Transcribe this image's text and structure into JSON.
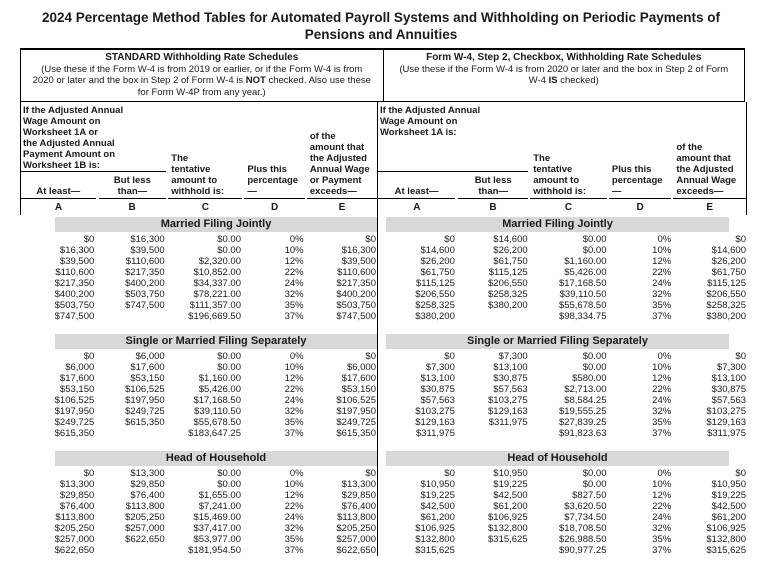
{
  "title": "2024 Percentage Method Tables for Automated Payroll Systems and Withholding on Periodic Payments of Pensions and Annuities",
  "theme": {
    "band_bg": "#d8d8d8",
    "border_color": "#000000",
    "text_color": "#1a1a1a"
  },
  "schedules": [
    {
      "heading": "STANDARD Withholding Rate Schedules",
      "desc_1": "(Use these if the Form W-4 is from 2019 or earlier, or if the Form W-4 is from 2020 or later and the box in Step 2 of Form W-4 is ",
      "desc_bold": "NOT",
      "desc_2": " checked. Also use these for Form W-4P from any year.)",
      "intro": "If the Adjusted Annual\nWage Amount on\nWorksheet 1A or\nthe Adjusted Annual\nPayment Amount on\nWorksheet 1B is:",
      "col_headers": {
        "a": "At least—",
        "b": "But less\nthan—",
        "c": "The\ntentative\namount to\nwithhold is:",
        "d": "Plus this\npercentage—",
        "e": "of the\namount that\nthe Adjusted\nAnnual Wage\nor Payment\nexceeds—"
      },
      "col_letters": [
        "A",
        "B",
        "C",
        "D",
        "E"
      ],
      "sections": [
        {
          "name": "Married Filing Jointly",
          "rows": [
            [
              "$0",
              "$16,300",
              "$0.00",
              "0%",
              "$0"
            ],
            [
              "$16,300",
              "$39,500",
              "$0.00",
              "10%",
              "$16,300"
            ],
            [
              "$39,500",
              "$110,600",
              "$2,320.00",
              "12%",
              "$39,500"
            ],
            [
              "$110,600",
              "$217,350",
              "$10,852.00",
              "22%",
              "$110,600"
            ],
            [
              "$217,350",
              "$400,200",
              "$34,337.00",
              "24%",
              "$217,350"
            ],
            [
              "$400,200",
              "$503,750",
              "$78,221.00",
              "32%",
              "$400,200"
            ],
            [
              "$503,750",
              "$747,500",
              "$111,357.00",
              "35%",
              "$503,750"
            ],
            [
              "$747,500",
              "",
              "$196,669.50",
              "37%",
              "$747,500"
            ]
          ]
        },
        {
          "name": "Single or Married Filing Separately",
          "rows": [
            [
              "$0",
              "$6,000",
              "$0.00",
              "0%",
              "$0"
            ],
            [
              "$6,000",
              "$17,600",
              "$0.00",
              "10%",
              "$6,000"
            ],
            [
              "$17,600",
              "$53,150",
              "$1,160.00",
              "12%",
              "$17,600"
            ],
            [
              "$53,150",
              "$106,525",
              "$5,426.00",
              "22%",
              "$53,150"
            ],
            [
              "$106,525",
              "$197,950",
              "$17,168.50",
              "24%",
              "$106,525"
            ],
            [
              "$197,950",
              "$249,725",
              "$39,110.50",
              "32%",
              "$197,950"
            ],
            [
              "$249,725",
              "$615,350",
              "$55,678.50",
              "35%",
              "$249,725"
            ],
            [
              "$615,350",
              "",
              "$183,647.25",
              "37%",
              "$615,350"
            ]
          ]
        },
        {
          "name": "Head of Household",
          "rows": [
            [
              "$0",
              "$13,300",
              "$0.00",
              "0%",
              "$0"
            ],
            [
              "$13,300",
              "$29,850",
              "$0.00",
              "10%",
              "$13,300"
            ],
            [
              "$29,850",
              "$76,400",
              "$1,655.00",
              "12%",
              "$29,850"
            ],
            [
              "$76,400",
              "$113,800",
              "$7,241.00",
              "22%",
              "$76,400"
            ],
            [
              "$113,800",
              "$205,250",
              "$15,469.00",
              "24%",
              "$113,800"
            ],
            [
              "$205,250",
              "$257,000",
              "$37,417.00",
              "32%",
              "$205,250"
            ],
            [
              "$257,000",
              "$622,650",
              "$53,977.00",
              "35%",
              "$257,000"
            ],
            [
              "$622,650",
              "",
              "$181,954.50",
              "37%",
              "$622,650"
            ]
          ]
        }
      ]
    },
    {
      "heading": "Form W-4, Step 2, Checkbox, Withholding Rate Schedules",
      "desc_1": "(Use these if the Form W-4 is from 2020 or later and the box in Step 2 of Form W-4 ",
      "desc_bold": "IS",
      "desc_2": " checked)",
      "intro": "If the Adjusted Annual\nWage Amount on\nWorksheet 1A is:",
      "col_headers": {
        "a": "At least—",
        "b": "But less\nthan—",
        "c": "The\ntentative\namount to\nwithhold is:",
        "d": "Plus this\npercentage—",
        "e": "of the\namount that\nthe Adjusted\nAnnual Wage\nexceeds—"
      },
      "col_letters": [
        "A",
        "B",
        "C",
        "D",
        "E"
      ],
      "sections": [
        {
          "name": "Married Filing Jointly",
          "rows": [
            [
              "$0",
              "$14,600",
              "$0.00",
              "0%",
              "$0"
            ],
            [
              "$14,600",
              "$26,200",
              "$0.00",
              "10%",
              "$14,600"
            ],
            [
              "$26,200",
              "$61,750",
              "$1,160.00",
              "12%",
              "$26,200"
            ],
            [
              "$61,750",
              "$115,125",
              "$5,426.00",
              "22%",
              "$61,750"
            ],
            [
              "$115,125",
              "$206,550",
              "$17,168.50",
              "24%",
              "$115,125"
            ],
            [
              "$206,550",
              "$258,325",
              "$39,110.50",
              "32%",
              "$206,550"
            ],
            [
              "$258,325",
              "$380,200",
              "$55,678.50",
              "35%",
              "$258,325"
            ],
            [
              "$380,200",
              "",
              "$98,334.75",
              "37%",
              "$380,200"
            ]
          ]
        },
        {
          "name": "Single or Married Filing Separately",
          "rows": [
            [
              "$0",
              "$7,300",
              "$0.00",
              "0%",
              "$0"
            ],
            [
              "$7,300",
              "$13,100",
              "$0.00",
              "10%",
              "$7,300"
            ],
            [
              "$13,100",
              "$30,875",
              "$580.00",
              "12%",
              "$13,100"
            ],
            [
              "$30,875",
              "$57,563",
              "$2,713.00",
              "22%",
              "$30,875"
            ],
            [
              "$57,563",
              "$103,275",
              "$8,584.25",
              "24%",
              "$57,563"
            ],
            [
              "$103,275",
              "$129,163",
              "$19,555.25",
              "32%",
              "$103,275"
            ],
            [
              "$129,163",
              "$311,975",
              "$27,839.25",
              "35%",
              "$129,163"
            ],
            [
              "$311,975",
              "",
              "$91,823.63",
              "37%",
              "$311,975"
            ]
          ]
        },
        {
          "name": "Head of Household",
          "rows": [
            [
              "$0",
              "$10,950",
              "$0.00",
              "0%",
              "$0"
            ],
            [
              "$10,950",
              "$19,225",
              "$0.00",
              "10%",
              "$10,950"
            ],
            [
              "$19,225",
              "$42,500",
              "$827.50",
              "12%",
              "$19,225"
            ],
            [
              "$42,500",
              "$61,200",
              "$3,620.50",
              "22%",
              "$42,500"
            ],
            [
              "$61,200",
              "$106,925",
              "$7,734.50",
              "24%",
              "$61,200"
            ],
            [
              "$106,925",
              "$132,800",
              "$18,708.50",
              "32%",
              "$106,925"
            ],
            [
              "$132,800",
              "$315,625",
              "$26,988.50",
              "35%",
              "$132,800"
            ],
            [
              "$315,625",
              "",
              "$90,977.25",
              "37%",
              "$315,625"
            ]
          ]
        }
      ]
    }
  ]
}
